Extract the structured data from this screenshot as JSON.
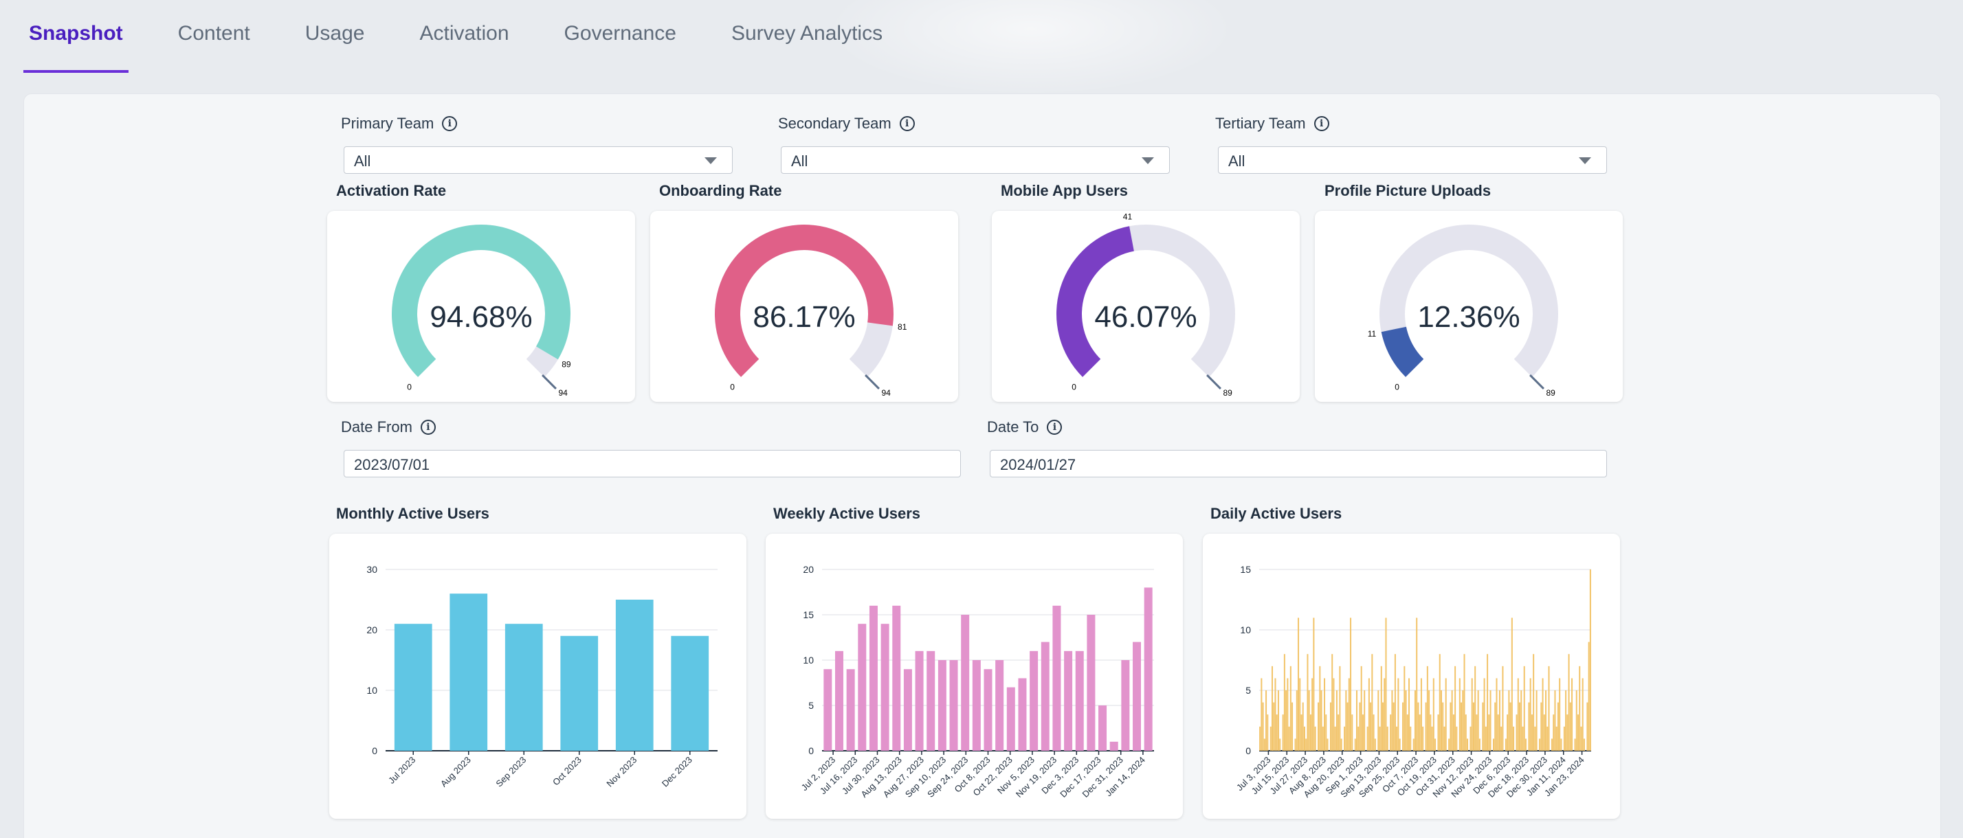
{
  "tabs": [
    "Snapshot",
    "Content",
    "Usage",
    "Activation",
    "Governance",
    "Survey Analytics"
  ],
  "filters": {
    "primary": {
      "label": "Primary Team",
      "value": "All"
    },
    "secondary": {
      "label": "Secondary Team",
      "value": "All"
    },
    "tertiary": {
      "label": "Tertiary Team",
      "value": "All"
    },
    "date_from": {
      "label": "Date From",
      "value": "2023/07/01"
    },
    "date_to": {
      "label": "Date To",
      "value": "2024/01/27"
    }
  },
  "gauges": [
    {
      "title": "Activation Rate",
      "display": "94.68%",
      "value": 89,
      "max": 94,
      "min": 0,
      "value_label": "89",
      "min_label": "0",
      "max_label": "94",
      "color": "#7dd6cc"
    },
    {
      "title": "Onboarding Rate",
      "display": "86.17%",
      "value": 81,
      "max": 94,
      "min": 0,
      "value_label": "81",
      "min_label": "0",
      "max_label": "94",
      "color": "#e06088"
    },
    {
      "title": "Mobile App Users",
      "display": "46.07%",
      "value": 41,
      "max": 89,
      "min": 0,
      "value_label": "41",
      "min_label": "0",
      "max_label": "89",
      "color": "#7a3fc4"
    },
    {
      "title": "Profile Picture Uploads",
      "display": "12.36%",
      "value": 11,
      "max": 89,
      "min": 0,
      "value_label": "11",
      "min_label": "0",
      "max_label": "89",
      "color": "#3d5fae"
    }
  ],
  "gauge_track_color": "#e4e4ee",
  "chart_data": [
    {
      "type": "bar",
      "title": "Monthly Active Users",
      "color": "#60c6e4",
      "categories": [
        "Jul 2023",
        "Aug 2023",
        "Sep 2023",
        "Oct 2023",
        "Nov 2023",
        "Dec 2023"
      ],
      "values": [
        21,
        26,
        21,
        19,
        25,
        19
      ],
      "ylim": [
        0,
        30
      ],
      "yticks": [
        0,
        10,
        20,
        30
      ]
    },
    {
      "type": "bar",
      "title": "Weekly Active Users",
      "color": "#e293cc",
      "values": [
        9,
        11,
        9,
        14,
        16,
        14,
        16,
        9,
        11,
        11,
        10,
        10,
        15,
        10,
        9,
        10,
        7,
        8,
        11,
        12,
        16,
        11,
        11,
        15,
        5,
        1,
        10,
        12,
        18
      ],
      "tick_labels": [
        "Jul 2, 2023",
        "Jul 16, 2023",
        "Jul 30, 2023",
        "Aug 13, 2023",
        "Aug 27, 2023",
        "Sep 10, 2023",
        "Sep 24, 2023",
        "Oct 8, 2023",
        "Oct 22, 2023",
        "Nov 5, 2023",
        "Nov 19, 2023",
        "Dec 3, 2023",
        "Dec 17, 2023",
        "Dec 31, 2023",
        "Jan 14, 2024"
      ],
      "ylim": [
        0,
        20
      ],
      "yticks": [
        0,
        5,
        10,
        15,
        20
      ]
    },
    {
      "type": "bar",
      "title": "Daily Active Users",
      "color": "#f2c46a",
      "values": [
        2,
        6,
        4,
        1,
        5,
        3,
        0,
        2,
        7,
        4,
        6,
        3,
        5,
        1,
        0,
        3,
        8,
        5,
        6,
        2,
        7,
        4,
        0,
        1,
        5,
        11,
        6,
        3,
        4,
        2,
        1,
        8,
        5,
        3,
        6,
        11,
        2,
        0,
        4,
        7,
        5,
        2,
        6,
        3,
        1,
        0,
        4,
        8,
        6,
        2,
        5,
        3,
        7,
        1,
        0,
        2,
        5,
        4,
        6,
        11,
        3,
        0,
        1,
        5,
        2,
        4,
        7,
        3,
        5,
        0,
        2,
        6,
        4,
        8,
        3,
        1,
        0,
        5,
        2,
        7,
        4,
        6,
        11,
        2,
        0,
        3,
        5,
        4,
        8,
        2,
        6,
        1,
        0,
        4,
        7,
        5,
        3,
        6,
        2,
        0,
        1,
        5,
        11,
        4,
        3,
        6,
        2,
        0,
        4,
        7,
        5,
        3,
        2,
        6,
        1,
        0,
        3,
        8,
        5,
        4,
        2,
        6,
        0,
        1,
        4,
        5,
        3,
        7,
        2,
        0,
        6,
        4,
        5,
        8,
        3,
        1,
        0,
        2,
        6,
        4,
        7,
        3,
        5,
        1,
        0,
        4,
        6,
        2,
        8,
        3,
        5,
        0,
        1,
        4,
        6,
        3,
        5,
        2,
        7,
        0,
        1,
        3,
        5,
        4,
        11,
        2,
        0,
        3,
        6,
        4,
        5,
        2,
        7,
        1,
        0,
        4,
        6,
        3,
        8,
        2,
        5,
        0,
        1,
        4,
        6,
        3,
        5,
        2,
        7,
        0,
        1,
        3,
        5,
        2,
        4,
        6,
        1,
        0,
        2,
        5,
        3,
        8,
        4,
        6,
        0,
        1,
        5,
        3,
        7,
        2,
        6,
        1,
        0,
        4,
        9,
        15
      ],
      "tick_labels": [
        "Jul 3, 2023",
        "Jul 15, 2023",
        "Jul 27, 2023",
        "Aug 8, 2023",
        "Aug 20, 2023",
        "Sep 1, 2023",
        "Sep 13, 2023",
        "Sep 25, 2023",
        "Oct 7, 2023",
        "Oct 19, 2023",
        "Oct 31, 2023",
        "Nov 12, 2023",
        "Nov 24, 2023",
        "Dec 6, 2023",
        "Dec 18, 2023",
        "Dec 30, 2023",
        "Jan 11, 2024",
        "Jan 23, 2024"
      ],
      "ylim": [
        0,
        15
      ],
      "yticks": [
        0,
        5,
        10,
        15
      ]
    }
  ]
}
